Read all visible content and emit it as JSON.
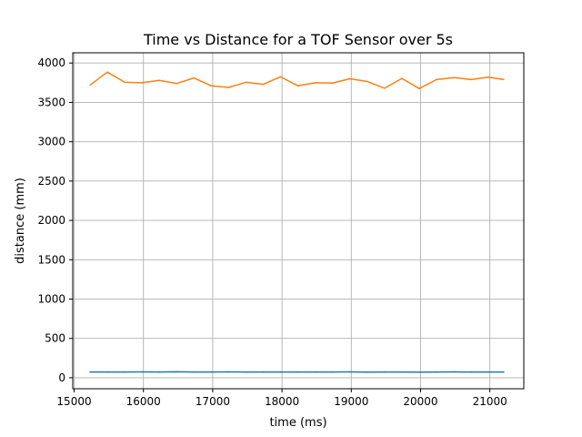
{
  "chart_data": {
    "type": "line",
    "title": "Time vs Distance for a TOF Sensor over 5s",
    "xlabel": "time (ms)",
    "ylabel": "distance (mm)",
    "xlim": [
      14980,
      21490
    ],
    "ylim": [
      -140,
      4130
    ],
    "xticks": [
      15000,
      16000,
      17000,
      18000,
      19000,
      20000,
      21000
    ],
    "yticks": [
      0,
      500,
      1000,
      1500,
      2000,
      2500,
      3000,
      3500,
      4000
    ],
    "grid": true,
    "legend": "none",
    "series": [
      {
        "color": "#1f77b4",
        "x": [
          15230,
          15480,
          15730,
          15980,
          16230,
          16480,
          16730,
          16980,
          17230,
          17480,
          17730,
          17980,
          18230,
          18480,
          18730,
          18980,
          19230,
          19480,
          19730,
          19980,
          20230,
          20480,
          20730,
          20980,
          21200
        ],
        "y": [
          72,
          72,
          73,
          74,
          72,
          75,
          72,
          73,
          74,
          72,
          73,
          72,
          73,
          72,
          73,
          74,
          71,
          73,
          72,
          71,
          72,
          74,
          72,
          73,
          73
        ]
      },
      {
        "color": "#ff7f0e",
        "x": [
          15230,
          15480,
          15730,
          15980,
          16230,
          16480,
          16730,
          16980,
          17230,
          17480,
          17730,
          17980,
          18230,
          18480,
          18730,
          18980,
          19230,
          19480,
          19730,
          19980,
          20230,
          20480,
          20730,
          20980,
          21200
        ],
        "y": [
          3720,
          3885,
          3755,
          3750,
          3780,
          3740,
          3810,
          3710,
          3690,
          3755,
          3730,
          3825,
          3710,
          3750,
          3745,
          3800,
          3765,
          3680,
          3805,
          3675,
          3790,
          3815,
          3790,
          3820,
          3790
        ]
      }
    ]
  }
}
